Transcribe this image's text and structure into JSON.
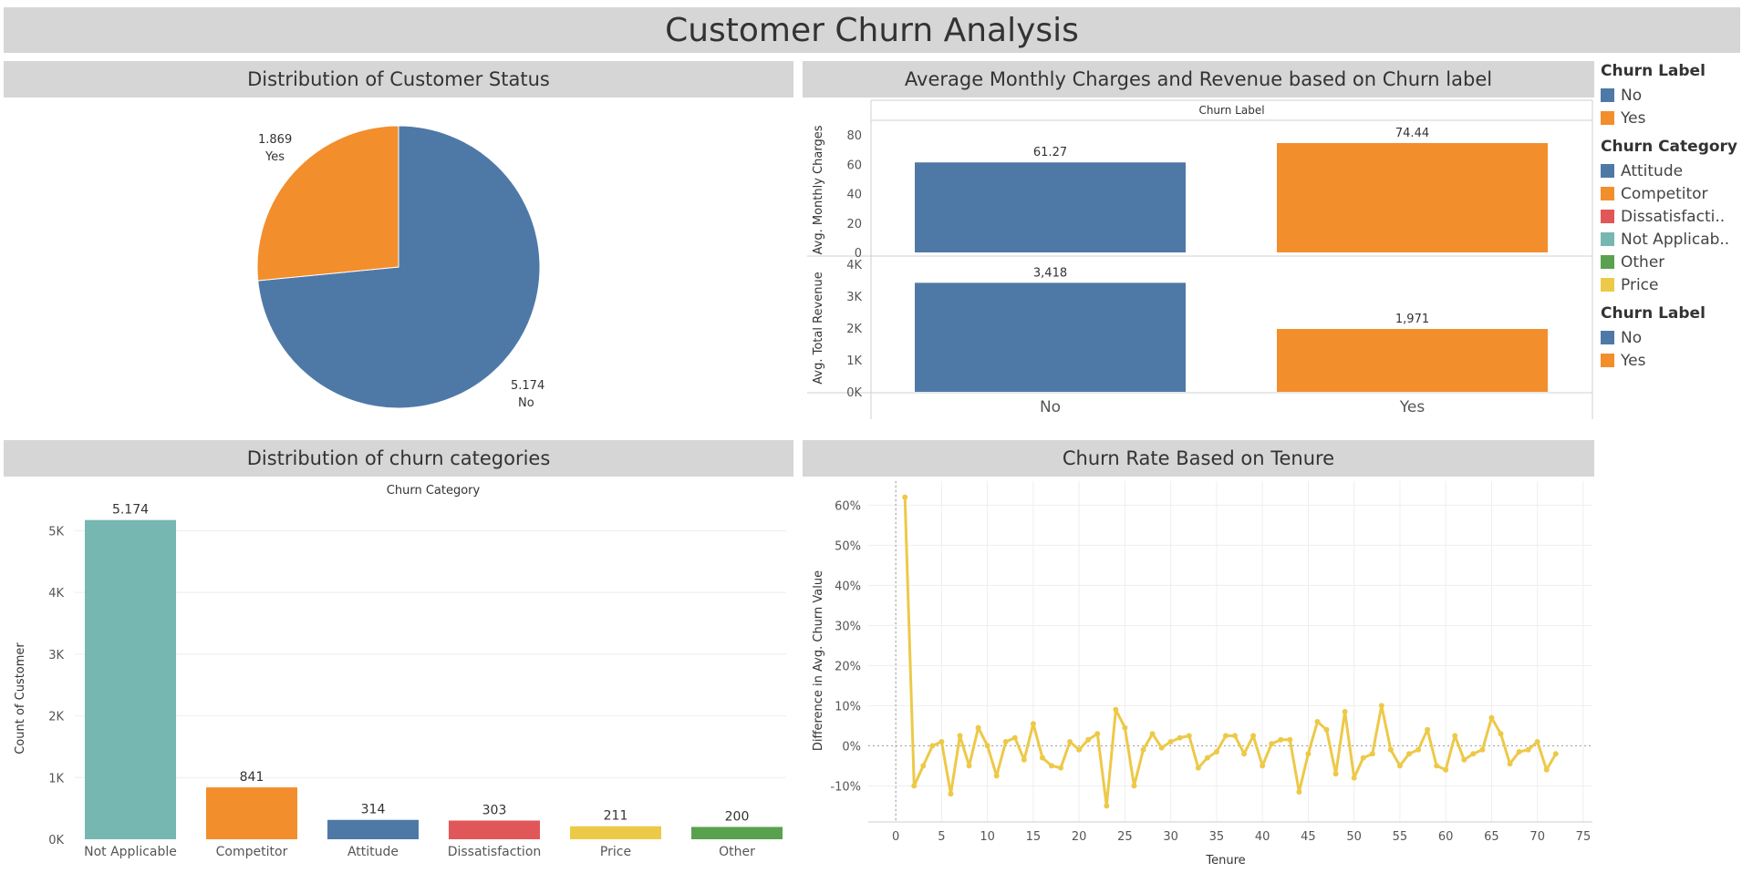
{
  "dashboard": {
    "title": "Customer Churn Analysis"
  },
  "panels": {
    "status": "Distribution of Customer Status",
    "charges": "Average Monthly Charges and Revenue based on Churn label",
    "categories": "Distribution of churn categories",
    "tenure": "Churn Rate Based on Tenure"
  },
  "legends": [
    {
      "title": "Churn Label",
      "items": [
        {
          "label": "No",
          "color": "#4e79a7"
        },
        {
          "label": "Yes",
          "color": "#f28e2b"
        }
      ]
    },
    {
      "title": "Churn Category",
      "items": [
        {
          "label": "Attitude",
          "color": "#4e79a7"
        },
        {
          "label": "Competitor",
          "color": "#f28e2b"
        },
        {
          "label": "Dissatisfacti..",
          "color": "#e15759"
        },
        {
          "label": "Not Applicab..",
          "color": "#76b7b2"
        },
        {
          "label": "Other",
          "color": "#59a14f"
        },
        {
          "label": "Price",
          "color": "#edc948"
        }
      ]
    },
    {
      "title": "Churn Label",
      "items": [
        {
          "label": "No",
          "color": "#4e79a7"
        },
        {
          "label": "Yes",
          "color": "#f28e2b"
        }
      ]
    }
  ],
  "chart_data": [
    {
      "type": "pie",
      "categories": [
        "No",
        "Yes"
      ],
      "values": [
        5174,
        1869
      ],
      "value_labels": [
        "5.174",
        "1.869"
      ],
      "colors": [
        "#4e79a7",
        "#f28e2b"
      ]
    },
    {
      "type": "bar",
      "header": "Churn Label",
      "categories": [
        "No",
        "Yes"
      ],
      "colors": [
        "#4e79a7",
        "#f28e2b"
      ],
      "panes": [
        {
          "ylabel": "Avg. Monthly Charges",
          "values": [
            61.27,
            74.44
          ],
          "value_labels": [
            "61.27",
            "74.44"
          ],
          "ylim": [
            0,
            85
          ],
          "ticks": [
            0,
            20,
            40,
            60,
            80
          ],
          "tick_labels": [
            "0",
            "20",
            "40",
            "60",
            "80"
          ]
        },
        {
          "ylabel": "Avg. Total Revenue",
          "values": [
            3418,
            1971
          ],
          "value_labels": [
            "3,418",
            "1,971"
          ],
          "ylim": [
            0,
            4000
          ],
          "ticks": [
            0,
            1000,
            2000,
            3000,
            4000
          ],
          "tick_labels": [
            "0K",
            "1K",
            "2K",
            "3K",
            "4K"
          ]
        }
      ]
    },
    {
      "type": "bar",
      "header": "Churn Category",
      "ylabel": "Count of Customer",
      "categories": [
        "Not Applicable",
        "Competitor",
        "Attitude",
        "Dissatisfaction",
        "Price",
        "Other"
      ],
      "values": [
        5174,
        841,
        314,
        303,
        211,
        200
      ],
      "value_labels": [
        "5.174",
        "841",
        "314",
        "303",
        "211",
        "200"
      ],
      "colors": [
        "#76b7b2",
        "#f28e2b",
        "#4e79a7",
        "#e15759",
        "#edc948",
        "#59a14f"
      ],
      "ylim": [
        0,
        5450
      ],
      "ticks": [
        0,
        1000,
        2000,
        3000,
        4000,
        5000
      ],
      "tick_labels": [
        "0K",
        "1K",
        "2K",
        "3K",
        "4K",
        "5K"
      ],
      "grid": true
    },
    {
      "type": "line",
      "xlabel": "Tenure",
      "ylabel": "Difference in Avg. Churn Value",
      "x": [
        1,
        2,
        3,
        4,
        5,
        6,
        7,
        8,
        9,
        10,
        11,
        12,
        13,
        14,
        15,
        16,
        17,
        18,
        19,
        20,
        21,
        22,
        23,
        24,
        25,
        26,
        27,
        28,
        29,
        30,
        31,
        32,
        33,
        34,
        35,
        36,
        37,
        38,
        39,
        40,
        41,
        42,
        43,
        44,
        45,
        46,
        47,
        48,
        49,
        50,
        51,
        52,
        53,
        54,
        55,
        56,
        57,
        58,
        59,
        60,
        61,
        62,
        63,
        64,
        65,
        66,
        67,
        68,
        69,
        70,
        71,
        72
      ],
      "y": [
        62,
        -10,
        -5,
        0,
        1,
        -12,
        2.5,
        -5,
        4.5,
        0,
        -7.5,
        1,
        2,
        -3.5,
        5.5,
        -3,
        -5,
        -5.5,
        1,
        -1,
        1.5,
        3,
        -15,
        9,
        4.5,
        -10,
        -1,
        3,
        -0.5,
        1,
        2,
        2.5,
        -5.5,
        -3,
        -1.5,
        2.5,
        2.5,
        -2,
        2.5,
        -5,
        0.5,
        1.5,
        1.5,
        -11.5,
        -2,
        6,
        4,
        -7,
        8.5,
        -8,
        -3,
        -2,
        10,
        -1,
        -5,
        -2,
        -1,
        4,
        -5,
        -6,
        2.5,
        -3.5,
        -2,
        -1,
        7,
        3,
        -4.5,
        -1.5,
        -1,
        1,
        -6,
        -2
      ],
      "color": "#edc948",
      "xlim": [
        -3,
        76
      ],
      "xticks": [
        0,
        5,
        10,
        15,
        20,
        25,
        30,
        35,
        40,
        45,
        50,
        55,
        60,
        65,
        70,
        75
      ],
      "ylim": [
        -19,
        66
      ],
      "yticks": [
        -10,
        0,
        10,
        20,
        30,
        40,
        50,
        60
      ],
      "ytick_labels": [
        "-10%",
        "0%",
        "10%",
        "20%",
        "30%",
        "40%",
        "50%",
        "60%"
      ],
      "grid": true
    }
  ]
}
